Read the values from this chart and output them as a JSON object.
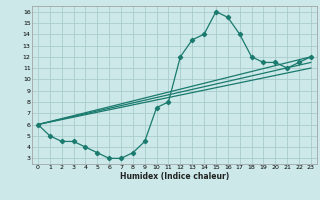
{
  "xlabel": "Humidex (Indice chaleur)",
  "bg_color": "#cce8e8",
  "grid_color": "#aacccc",
  "line_color": "#1a7a6e",
  "xlim": [
    -0.5,
    23.5
  ],
  "ylim": [
    2.5,
    16.5
  ],
  "xticks": [
    0,
    1,
    2,
    3,
    4,
    5,
    6,
    7,
    8,
    9,
    10,
    11,
    12,
    13,
    14,
    15,
    16,
    17,
    18,
    19,
    20,
    21,
    22,
    23
  ],
  "yticks": [
    3,
    4,
    5,
    6,
    7,
    8,
    9,
    10,
    11,
    12,
    13,
    14,
    15,
    16
  ],
  "series1_x": [
    0,
    1,
    2,
    3,
    4,
    5,
    6,
    7,
    8,
    9,
    10,
    11,
    12,
    13,
    14,
    15,
    16,
    17,
    18,
    19,
    20,
    21,
    22,
    23
  ],
  "series1_y": [
    6.0,
    5.0,
    4.5,
    4.5,
    4.0,
    3.5,
    3.0,
    3.0,
    3.5,
    4.5,
    7.5,
    8.0,
    12.0,
    13.5,
    14.0,
    16.0,
    15.5,
    14.0,
    12.0,
    11.5,
    11.5,
    11.0,
    11.5,
    12.0
  ],
  "series2_x": [
    0,
    23
  ],
  "series2_y": [
    6.0,
    12.0
  ],
  "series3_x": [
    0,
    23
  ],
  "series3_y": [
    6.0,
    11.5
  ],
  "series4_x": [
    0,
    23
  ],
  "series4_y": [
    6.0,
    11.0
  ]
}
